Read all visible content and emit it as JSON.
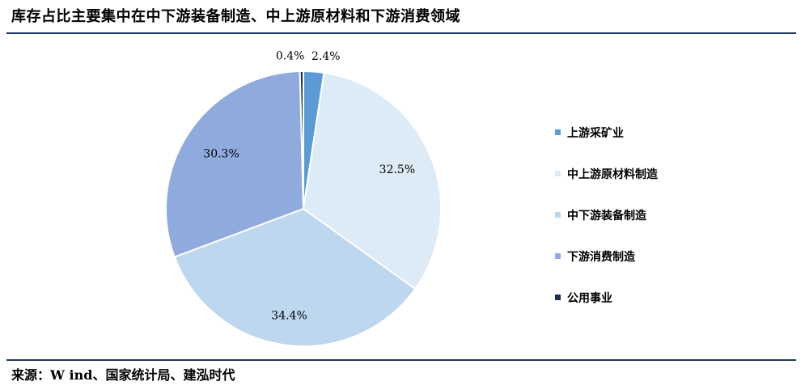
{
  "title": "库存占比主要集中在中下游装备制造、中上游原材料和下游消费领域",
  "source": "来源：W ind、国家统计局、建泓时代",
  "chart_data": {
    "type": "pie",
    "series": [
      {
        "name": "上游采矿业",
        "value": 2.4,
        "label": "2.4%",
        "color": "#5b9bd5"
      },
      {
        "name": "中上游原材料制造",
        "value": 32.5,
        "label": "32.5%",
        "color": "#ddebf7"
      },
      {
        "name": "中下游装备制造",
        "value": 34.4,
        "label": "34.4%",
        "color": "#bdd7ee"
      },
      {
        "name": "下游消费制造",
        "value": 30.3,
        "label": "30.3%",
        "color": "#8faadc"
      },
      {
        "name": "公用事业",
        "value": 0.4,
        "label": "0.4%",
        "color": "#1f2d4e"
      }
    ],
    "legend_position": "right"
  }
}
